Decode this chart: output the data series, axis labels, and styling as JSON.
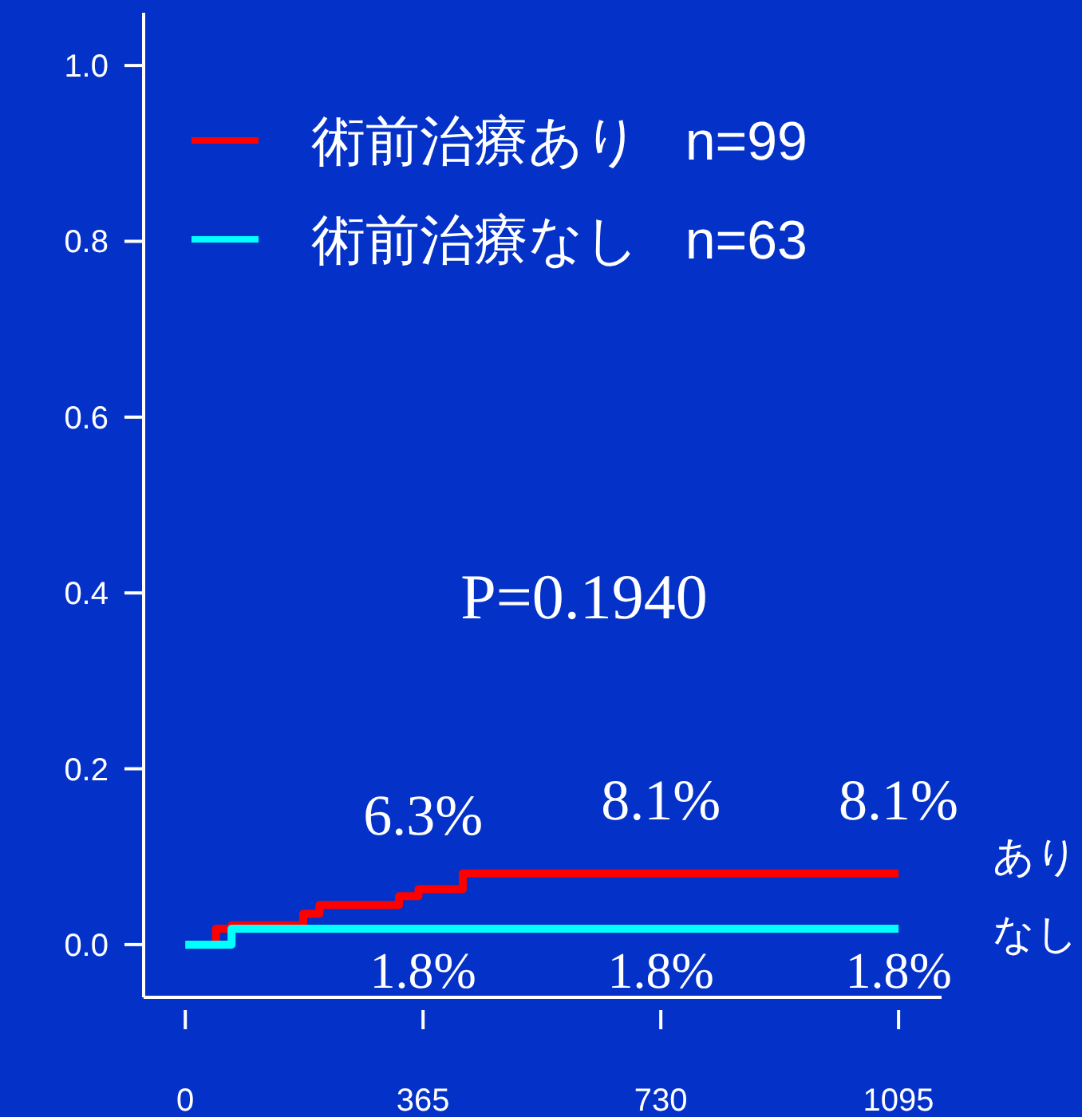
{
  "chart_data": {
    "type": "step",
    "series": [
      {
        "name": "術前治療あり   n=99",
        "color": "#ff0000",
        "x": [
          0,
          47,
          71,
          181,
          206,
          328,
          358,
          426,
          1095
        ],
        "values": [
          0,
          0.018,
          0.022,
          0.035,
          0.045,
          0.055,
          0.063,
          0.081,
          0.081
        ]
      },
      {
        "name": "術前治療なし   n=63",
        "color": "#00ffff",
        "x": [
          0,
          71,
          1095
        ],
        "values": [
          0,
          0.018,
          0.018
        ]
      }
    ],
    "xlim": [
      -64,
      1161
    ],
    "ylim": [
      -0.06,
      1.06
    ],
    "xticks": [
      0,
      365,
      730,
      1095
    ],
    "yticks": [
      {
        "value": 0,
        "label": "0.0"
      },
      0.2,
      0.4,
      0.6,
      0.8,
      {
        "value": 1,
        "label": "1.0"
      }
    ],
    "legend": "top left",
    "grid": false,
    "annotations": [
      "P=0.1940",
      "あり",
      "なし",
      {
        "text": "6.3%",
        "x": 365,
        "y": 0.063
      },
      {
        "text": "8.1%",
        "x": 730,
        "y": 0.081
      },
      {
        "text": "8.1%",
        "x": 1095,
        "y": 0.081
      },
      {
        "text": "1.8%",
        "x": 365,
        "y": 0.018
      },
      {
        "text": "1.8%",
        "x": 730,
        "y": 0.018
      },
      {
        "text": "1.8%",
        "x": 1095,
        "y": 0.018
      }
    ]
  }
}
